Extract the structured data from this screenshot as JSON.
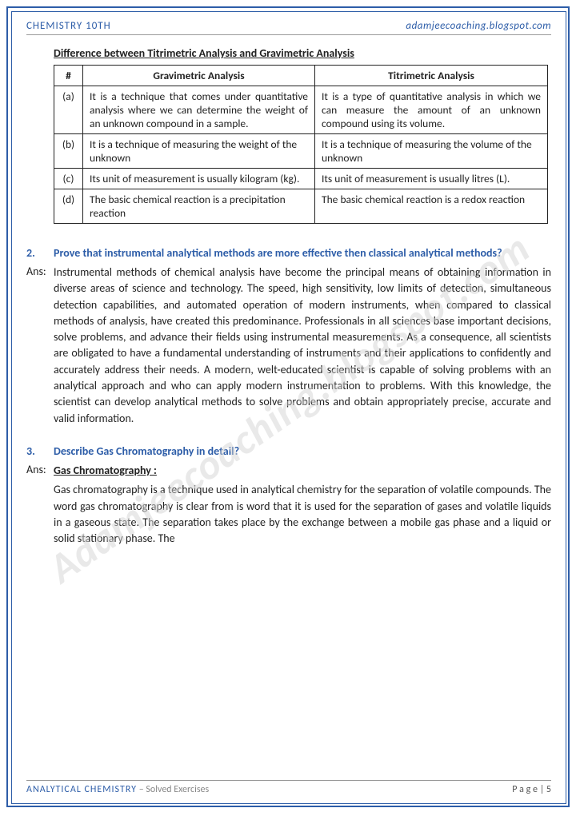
{
  "header": {
    "left": "CHEMISTRY 10TH",
    "right": "adamjeecoaching.blogspot.com"
  },
  "watermark": "Adamjeecoaching.blogspot.com",
  "table": {
    "title": "Difference between Titrimetric Analysis and Gravimetric Analysis",
    "cols": [
      "#",
      "Gravimetric Analysis",
      "Titrimetric Analysis"
    ],
    "rows": [
      {
        "n": "(a)",
        "g": "It is a technique that comes under quantitative analysis where we can determine the weight of an unknown compound in a sample.",
        "t": "It is a type of quantitative analysis in which we can measure the amount of an unknown compound using its volume."
      },
      {
        "n": "(b)",
        "g": "It is a technique of measuring the weight of the unknown",
        "t": "It is a technique of measuring the volume of the unknown"
      },
      {
        "n": "(c)",
        "g": "Its unit of measurement is usually kilogram (kg).",
        "t": "Its unit of measurement is usually litres (L)."
      },
      {
        "n": "(d)",
        "g": "The basic chemical reaction is a precipitation reaction",
        "t": "The basic chemical reaction is a redox reaction"
      }
    ]
  },
  "q2": {
    "num": "2.",
    "text": "Prove that instrumental analytical methods are more effective then classical analytical methods?"
  },
  "a2": {
    "label": "Ans:",
    "text": "Instrumental methods of chemical analysis have become the principal means of obtaining information in diverse areas of science and technology. The speed, high sensitivity, low limits of detection, simultaneous detection capabilities, and automated operation of modern instruments, when compared to classical methods of analysis, have created this predominance. Professionals in all sciences base important decisions, solve problems, and advance their fields using instrumental measurements. As a consequence, all scientists are obligated to have a fundamental understanding of instruments and their applications to confidently and accurately address their needs. A modern, welt-educated scientist is capable of solving problems with an analytical approach and who can apply modern instrumentation to problems. With this knowledge, the scientist can develop analytical methods to solve problems and obtain appropriately precise, accurate and valid information."
  },
  "q3": {
    "num": "3.",
    "text": "Describe Gas Chromatography in detail?"
  },
  "a3": {
    "label": "Ans:",
    "subtitle": "Gas Chromatography :",
    "text": "Gas chromatography is a technique used in analytical chemistry for the separation of volatile compounds. The word gas chromatography is clear from is word that it is used for the separation of gases and volatile liquids in a gaseous state. The separation takes place by the exchange between a mobile gas phase and a liquid or solid stationary phase. The"
  },
  "footer": {
    "a": "ANALYTICAL CHEMISTRY",
    "b": " – Solved Exercises",
    "page": "P a g e  | 5"
  }
}
